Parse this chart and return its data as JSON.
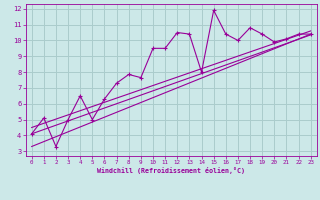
{
  "xlabel": "Windchill (Refroidissement éolien,°C)",
  "bg_color": "#cce8e8",
  "line_color": "#990099",
  "grid_color": "#aacccc",
  "xlim": [
    -0.5,
    23.5
  ],
  "ylim": [
    2.7,
    12.3
  ],
  "xticks": [
    0,
    1,
    2,
    3,
    4,
    5,
    6,
    7,
    8,
    9,
    10,
    11,
    12,
    13,
    14,
    15,
    16,
    17,
    18,
    19,
    20,
    21,
    22,
    23
  ],
  "yticks": [
    3,
    4,
    5,
    6,
    7,
    8,
    9,
    10,
    11,
    12
  ],
  "series1_x": [
    0,
    1,
    2,
    3,
    4,
    5,
    6,
    7,
    8,
    9,
    10,
    11,
    12,
    13,
    14,
    15,
    16,
    17,
    18,
    19,
    20,
    21,
    22,
    23
  ],
  "series1_y": [
    4.1,
    5.1,
    3.3,
    5.0,
    6.5,
    5.0,
    6.3,
    7.3,
    7.85,
    7.65,
    9.5,
    9.5,
    10.5,
    10.4,
    8.0,
    11.9,
    10.4,
    10.0,
    10.8,
    10.4,
    9.9,
    10.1,
    10.4,
    10.4
  ],
  "line1_x": [
    0,
    23
  ],
  "line1_y": [
    3.3,
    10.4
  ],
  "line2_x": [
    0,
    23
  ],
  "line2_y": [
    4.1,
    10.35
  ],
  "line3_x": [
    0,
    23
  ],
  "line3_y": [
    4.5,
    10.6
  ]
}
